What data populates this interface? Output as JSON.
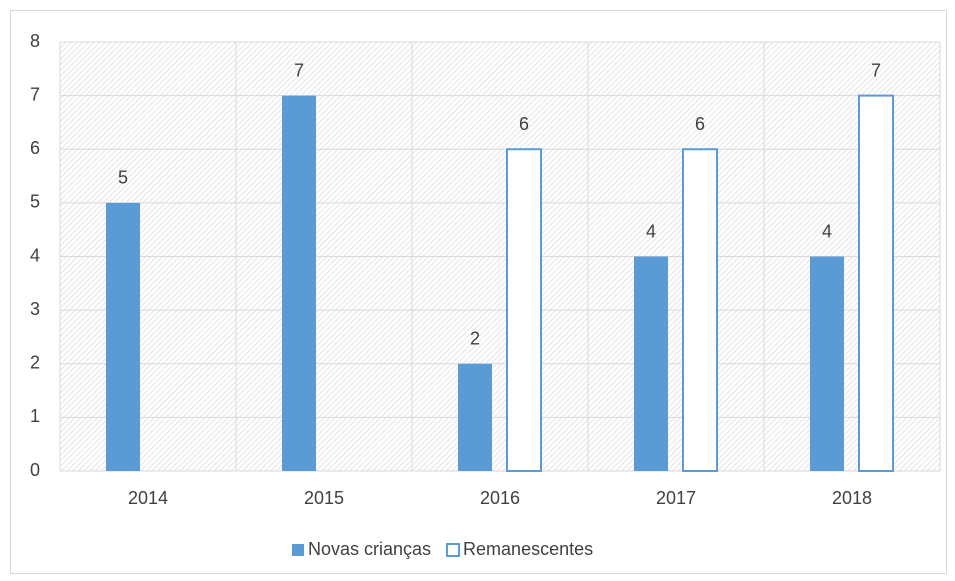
{
  "chart_data": {
    "type": "bar",
    "categories": [
      "2014",
      "2015",
      "2016",
      "2017",
      "2018"
    ],
    "series": [
      {
        "name": "Novas crianças",
        "color": "#5b9bd5",
        "values": [
          5,
          7,
          2,
          4,
          4
        ]
      },
      {
        "name": "Remanescentes",
        "color": "#ffffff",
        "values": [
          null,
          null,
          6,
          6,
          7
        ]
      }
    ],
    "ylim": [
      0,
      8
    ],
    "yticks": [
      0,
      1,
      2,
      3,
      4,
      5,
      6,
      7,
      8
    ],
    "grid": true,
    "legend": "bottom"
  }
}
